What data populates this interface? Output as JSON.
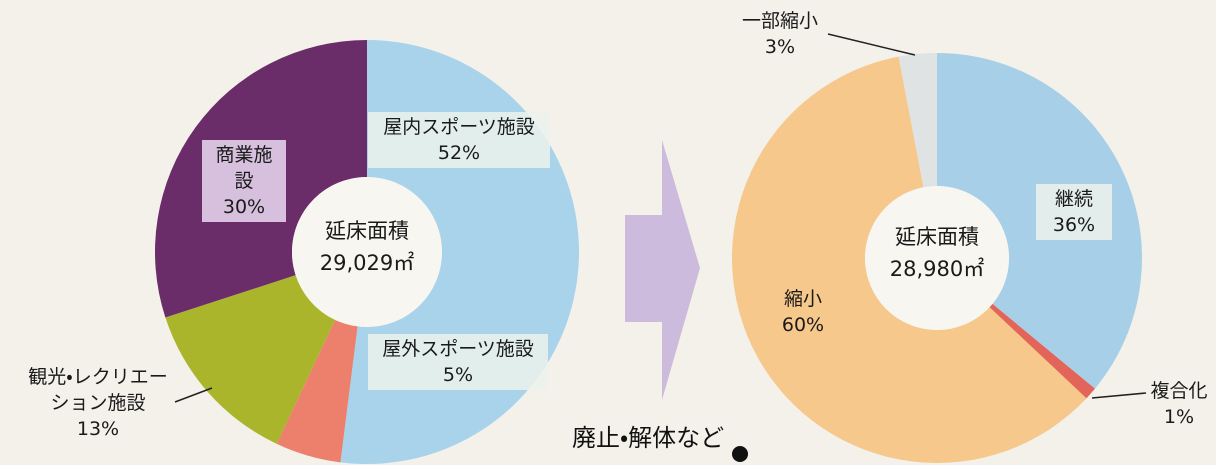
{
  "chart_data": [
    {
      "type": "pie",
      "center_label": "延床面積",
      "center_value": "29,029㎡",
      "categories": [
        "屋内スポーツ施設",
        "屋外スポーツ施設",
        "観光・レクリエーション施設",
        "商業施設"
      ],
      "values": [
        52,
        5,
        13,
        30
      ],
      "value_labels": [
        "52%",
        "5%",
        "13%",
        "30%"
      ],
      "colors": [
        "#a9d3ea",
        "#ec806c",
        "#aab52c",
        "#6a2d69"
      ]
    },
    {
      "type": "pie",
      "center_label": "延床面積",
      "center_value": "28,980㎡",
      "categories": [
        "継続",
        "複合化",
        "縮小",
        "一部縮小"
      ],
      "values": [
        36,
        1,
        60,
        3
      ],
      "value_labels": [
        "36%",
        "1%",
        "60%",
        "3%"
      ],
      "colors": [
        "#a7d0e8",
        "#e3655a",
        "#f6c88c",
        "#dfe3e4"
      ]
    }
  ],
  "annotation": "廃止・解体など"
}
